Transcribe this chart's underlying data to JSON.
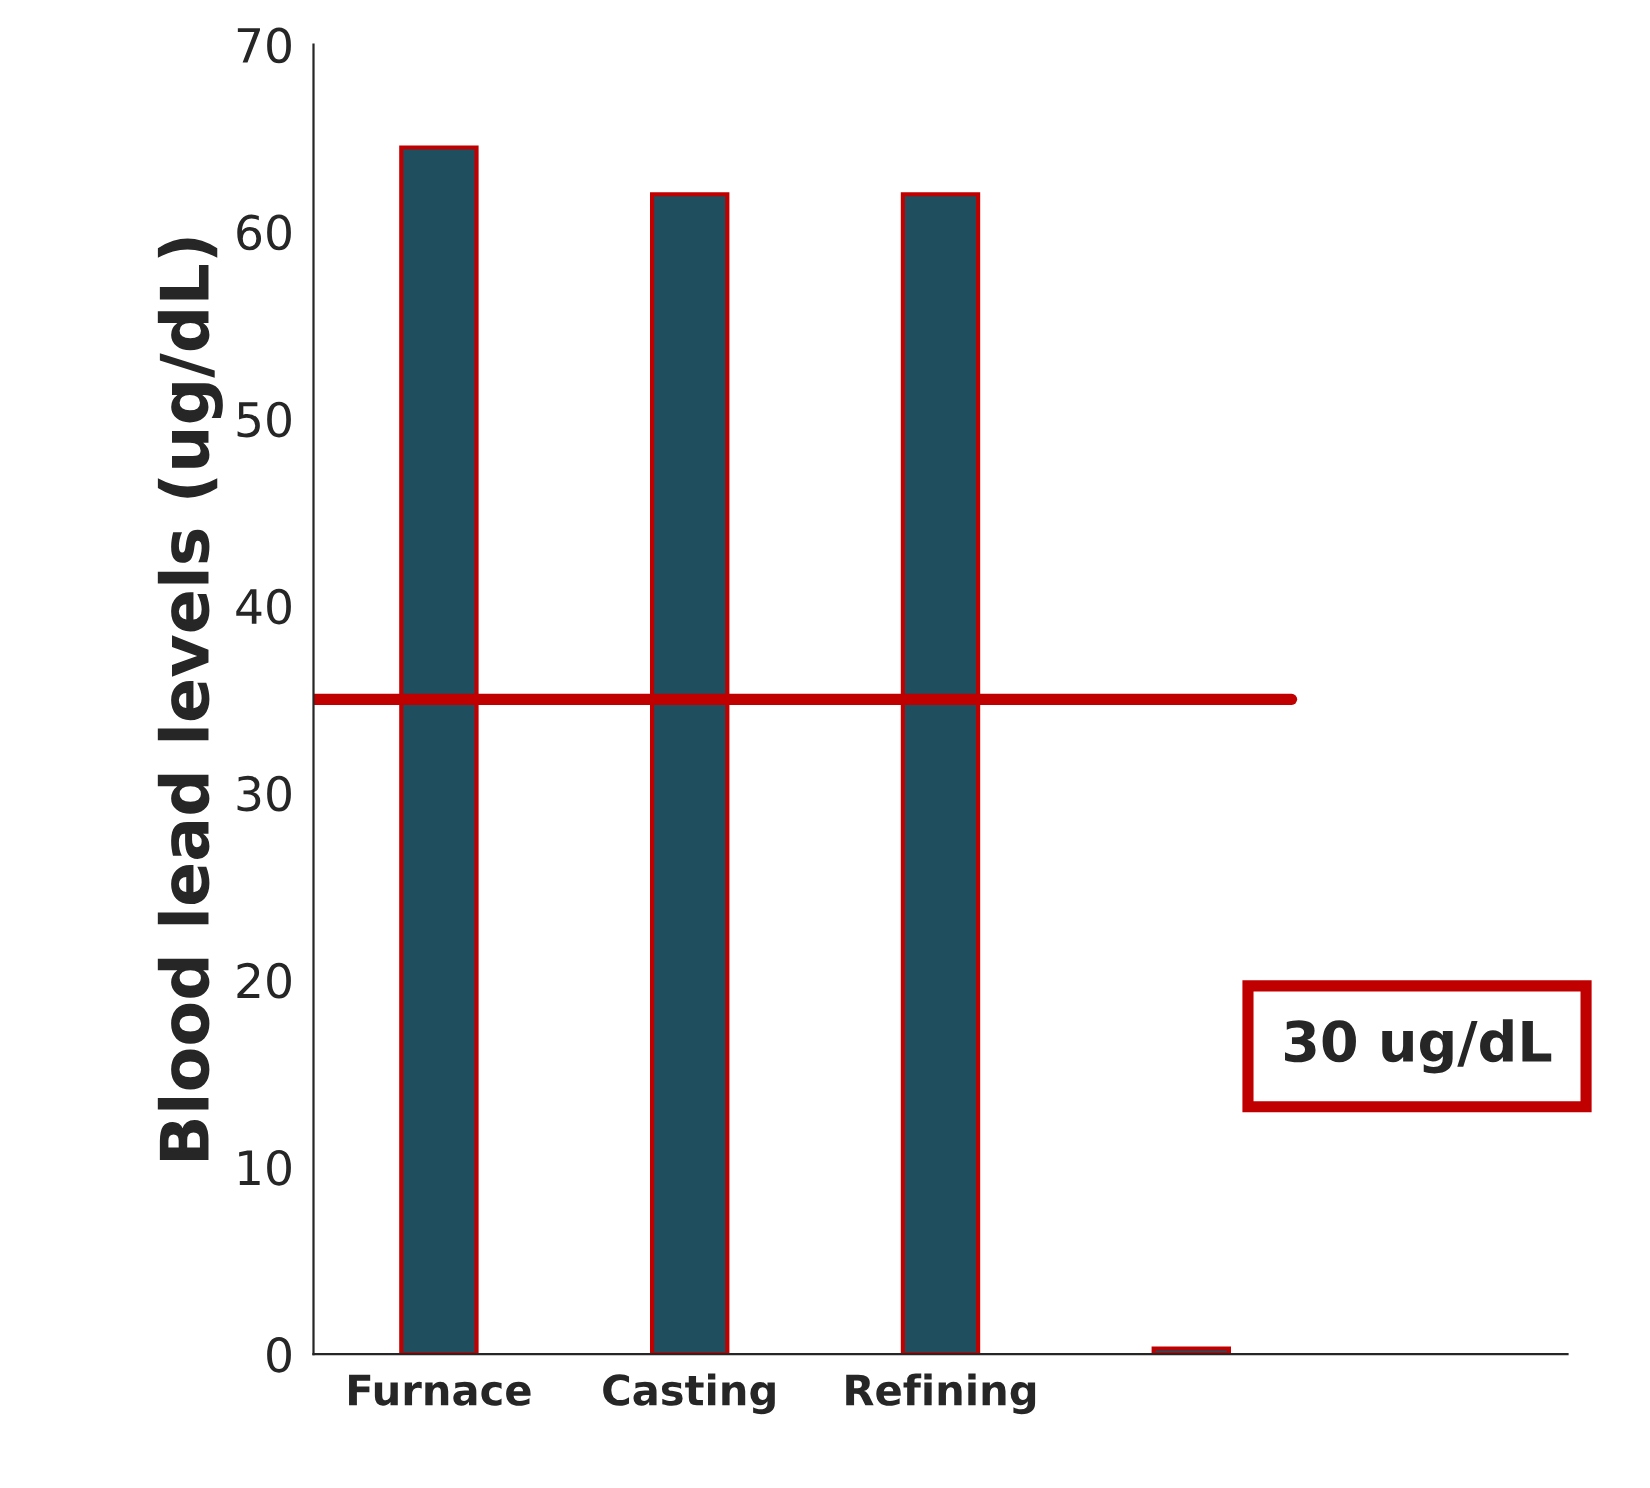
{
  "chart_data": {
    "type": "bar",
    "ylabel": "Blood lead levels (ug/dL)",
    "categories": [
      "Furnace",
      "Casting",
      "Refining",
      null,
      null
    ],
    "values": [
      64.5,
      62,
      62,
      0.3,
      null
    ],
    "color": "#1f4e5f",
    "ylim": [
      0,
      70
    ],
    "yticks": [
      0,
      10,
      20,
      30,
      40,
      50,
      60,
      70
    ],
    "grid": false,
    "legend": false,
    "annotations": [
      "30 ug/dL"
    ],
    "ref_lines": [
      {
        "axis": "y",
        "value": 35,
        "color": "#c00000",
        "line_style": "solid"
      }
    ]
  }
}
